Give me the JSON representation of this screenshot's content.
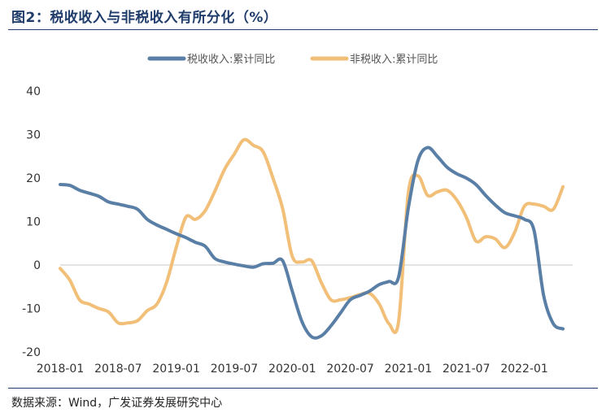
{
  "title": "图2：税收收入与非税收入有所分化（%）",
  "source": "数据来源：Wind，广发证券发展研究中心",
  "chart_data": {
    "type": "line",
    "ylim": [
      -20,
      40
    ],
    "yticks": [
      40,
      30,
      20,
      10,
      0,
      -10,
      -20
    ],
    "xtick_labels": [
      "2018-01",
      "2018-07",
      "2019-01",
      "2019-07",
      "2020-01",
      "2020-07",
      "2021-01",
      "2021-07",
      "2022-01"
    ],
    "xtick_positions": [
      0,
      6,
      12,
      18,
      24,
      30,
      36,
      42,
      48
    ],
    "x_start": 0,
    "x_end": 53,
    "grid": false,
    "legend_position": "top",
    "series": [
      {
        "name": "税收收入:累计同比",
        "color": "#5a7fa6",
        "points": [
          [
            0,
            18.5
          ],
          [
            1,
            18.3
          ],
          [
            2,
            17.2
          ],
          [
            3,
            16.5
          ],
          [
            4,
            15.8
          ],
          [
            5,
            14.5
          ],
          [
            6,
            14
          ],
          [
            7,
            13.5
          ],
          [
            8,
            12.8
          ],
          [
            9,
            10.5
          ],
          [
            10,
            9.2
          ],
          [
            11,
            8.2
          ],
          [
            12,
            7.2
          ],
          [
            13,
            6.3
          ],
          [
            14,
            5.2
          ],
          [
            15,
            4.3
          ],
          [
            16,
            1.5
          ],
          [
            17,
            0.7
          ],
          [
            18,
            0.2
          ],
          [
            19,
            -0.2
          ],
          [
            20,
            -0.5
          ],
          [
            21,
            0.3
          ],
          [
            22,
            0.4
          ],
          [
            23,
            1.0
          ],
          [
            24,
            -6
          ],
          [
            25,
            -13
          ],
          [
            26,
            -16.5
          ],
          [
            27,
            -16.3
          ],
          [
            28,
            -14
          ],
          [
            29,
            -11
          ],
          [
            30,
            -8
          ],
          [
            31,
            -7
          ],
          [
            32,
            -6
          ],
          [
            33,
            -4.5
          ],
          [
            34,
            -3.8
          ],
          [
            35,
            -2.8
          ],
          [
            36,
            13
          ],
          [
            37,
            24
          ],
          [
            38,
            27
          ],
          [
            39,
            25
          ],
          [
            40,
            22.5
          ],
          [
            41,
            21
          ],
          [
            42,
            20
          ],
          [
            43,
            18.5
          ],
          [
            44,
            16
          ],
          [
            45,
            13.8
          ],
          [
            46,
            12
          ],
          [
            47,
            11.3
          ],
          [
            48,
            10.5
          ],
          [
            49,
            8
          ],
          [
            50,
            -7
          ],
          [
            51,
            -13.5
          ],
          [
            52,
            -14.7
          ]
        ]
      },
      {
        "name": "非税收入:累计同比",
        "color": "#f2bf78",
        "points": [
          [
            0,
            -0.8
          ],
          [
            1,
            -3.5
          ],
          [
            2,
            -8
          ],
          [
            3,
            -9
          ],
          [
            4,
            -10
          ],
          [
            5,
            -10.8
          ],
          [
            6,
            -13.3
          ],
          [
            7,
            -13.3
          ],
          [
            8,
            -12.8
          ],
          [
            9,
            -10.5
          ],
          [
            10,
            -9
          ],
          [
            11,
            -4
          ],
          [
            12,
            4
          ],
          [
            13,
            11
          ],
          [
            14,
            10.5
          ],
          [
            15,
            12.5
          ],
          [
            16,
            17
          ],
          [
            17,
            22
          ],
          [
            18,
            25.5
          ],
          [
            19,
            28.8
          ],
          [
            20,
            27.5
          ],
          [
            21,
            26
          ],
          [
            22,
            20
          ],
          [
            23,
            13
          ],
          [
            24,
            2
          ],
          [
            25,
            0.7
          ],
          [
            26,
            1
          ],
          [
            27,
            -4
          ],
          [
            28,
            -8
          ],
          [
            29,
            -8
          ],
          [
            30,
            -7.5
          ],
          [
            31,
            -6.8
          ],
          [
            32,
            -6.5
          ],
          [
            33,
            -9
          ],
          [
            34,
            -13.5
          ],
          [
            35,
            -13
          ],
          [
            36,
            16.5
          ],
          [
            37,
            20.5
          ],
          [
            38,
            16
          ],
          [
            39,
            16.8
          ],
          [
            40,
            17.2
          ],
          [
            41,
            15
          ],
          [
            42,
            11
          ],
          [
            43,
            5.5
          ],
          [
            44,
            6.5
          ],
          [
            45,
            6
          ],
          [
            46,
            4
          ],
          [
            47,
            7.5
          ],
          [
            48,
            13.5
          ],
          [
            49,
            14
          ],
          [
            50,
            13.5
          ],
          [
            51,
            12.8
          ],
          [
            52,
            18
          ]
        ]
      }
    ]
  }
}
